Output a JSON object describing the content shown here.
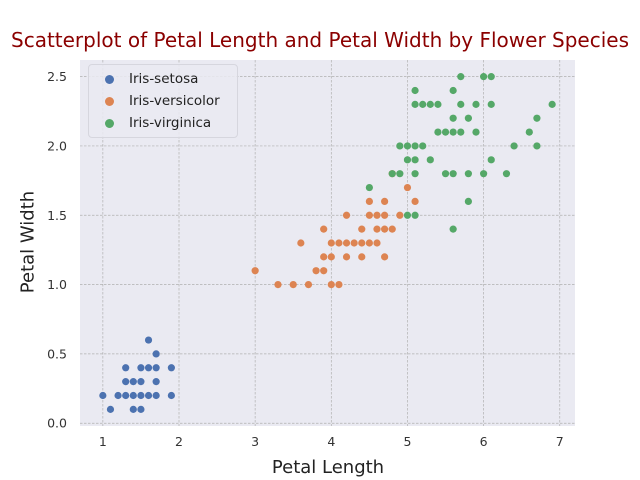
{
  "chart_data": {
    "type": "scatter",
    "title": "Scatterplot of Petal Length and Petal Width by Flower Species",
    "xlabel": "Petal Length",
    "ylabel": "Petal Width",
    "xlim": [
      0.7,
      7.2
    ],
    "ylim": [
      -0.02,
      2.62
    ],
    "xticks": [
      1,
      2,
      3,
      4,
      5,
      6,
      7
    ],
    "yticks": [
      "0.0",
      "0.5",
      "1.0",
      "1.5",
      "2.0",
      "2.5"
    ],
    "grid": true,
    "legend_position": "top-left",
    "series": [
      {
        "name": "Iris-setosa",
        "color": "#4c72b0",
        "points": [
          [
            1.0,
            0.2
          ],
          [
            1.1,
            0.1
          ],
          [
            1.2,
            0.2
          ],
          [
            1.3,
            0.2
          ],
          [
            1.3,
            0.3
          ],
          [
            1.3,
            0.4
          ],
          [
            1.4,
            0.1
          ],
          [
            1.4,
            0.2
          ],
          [
            1.4,
            0.3
          ],
          [
            1.5,
            0.1
          ],
          [
            1.5,
            0.2
          ],
          [
            1.5,
            0.3
          ],
          [
            1.5,
            0.4
          ],
          [
            1.6,
            0.2
          ],
          [
            1.6,
            0.4
          ],
          [
            1.6,
            0.6
          ],
          [
            1.7,
            0.2
          ],
          [
            1.7,
            0.3
          ],
          [
            1.7,
            0.4
          ],
          [
            1.7,
            0.5
          ],
          [
            1.9,
            0.2
          ],
          [
            1.9,
            0.4
          ]
        ]
      },
      {
        "name": "Iris-versicolor",
        "color": "#dd8452",
        "points": [
          [
            3.0,
            1.1
          ],
          [
            3.3,
            1.0
          ],
          [
            3.5,
            1.0
          ],
          [
            3.6,
            1.3
          ],
          [
            3.7,
            1.0
          ],
          [
            3.8,
            1.1
          ],
          [
            3.9,
            1.1
          ],
          [
            3.9,
            1.2
          ],
          [
            3.9,
            1.4
          ],
          [
            4.0,
            1.0
          ],
          [
            4.0,
            1.2
          ],
          [
            4.0,
            1.3
          ],
          [
            4.1,
            1.0
          ],
          [
            4.1,
            1.3
          ],
          [
            4.2,
            1.2
          ],
          [
            4.2,
            1.3
          ],
          [
            4.2,
            1.5
          ],
          [
            4.3,
            1.3
          ],
          [
            4.4,
            1.2
          ],
          [
            4.4,
            1.3
          ],
          [
            4.4,
            1.4
          ],
          [
            4.5,
            1.3
          ],
          [
            4.5,
            1.5
          ],
          [
            4.5,
            1.6
          ],
          [
            4.6,
            1.3
          ],
          [
            4.6,
            1.4
          ],
          [
            4.6,
            1.5
          ],
          [
            4.7,
            1.2
          ],
          [
            4.7,
            1.4
          ],
          [
            4.7,
            1.5
          ],
          [
            4.7,
            1.6
          ],
          [
            4.8,
            1.4
          ],
          [
            4.8,
            1.8
          ],
          [
            4.9,
            1.5
          ],
          [
            5.0,
            1.7
          ],
          [
            5.1,
            1.6
          ]
        ]
      },
      {
        "name": "Iris-virginica",
        "color": "#55a868",
        "points": [
          [
            4.5,
            1.7
          ],
          [
            4.8,
            1.8
          ],
          [
            4.9,
            1.8
          ],
          [
            4.9,
            2.0
          ],
          [
            5.0,
            1.5
          ],
          [
            5.0,
            1.9
          ],
          [
            5.0,
            2.0
          ],
          [
            5.1,
            1.5
          ],
          [
            5.1,
            1.8
          ],
          [
            5.1,
            1.9
          ],
          [
            5.1,
            2.0
          ],
          [
            5.1,
            2.3
          ],
          [
            5.1,
            2.4
          ],
          [
            5.2,
            2.0
          ],
          [
            5.2,
            2.3
          ],
          [
            5.3,
            1.9
          ],
          [
            5.3,
            2.3
          ],
          [
            5.4,
            2.1
          ],
          [
            5.4,
            2.3
          ],
          [
            5.5,
            1.8
          ],
          [
            5.5,
            2.1
          ],
          [
            5.6,
            1.4
          ],
          [
            5.6,
            1.8
          ],
          [
            5.6,
            2.1
          ],
          [
            5.6,
            2.2
          ],
          [
            5.6,
            2.4
          ],
          [
            5.7,
            2.1
          ],
          [
            5.7,
            2.3
          ],
          [
            5.7,
            2.5
          ],
          [
            5.8,
            1.6
          ],
          [
            5.8,
            1.8
          ],
          [
            5.8,
            2.2
          ],
          [
            5.9,
            2.1
          ],
          [
            5.9,
            2.3
          ],
          [
            6.0,
            1.8
          ],
          [
            6.0,
            2.5
          ],
          [
            6.1,
            1.9
          ],
          [
            6.1,
            2.3
          ],
          [
            6.1,
            2.5
          ],
          [
            6.3,
            1.8
          ],
          [
            6.4,
            2.0
          ],
          [
            6.6,
            2.1
          ],
          [
            6.7,
            2.0
          ],
          [
            6.7,
            2.2
          ],
          [
            6.9,
            2.3
          ]
        ]
      }
    ]
  }
}
